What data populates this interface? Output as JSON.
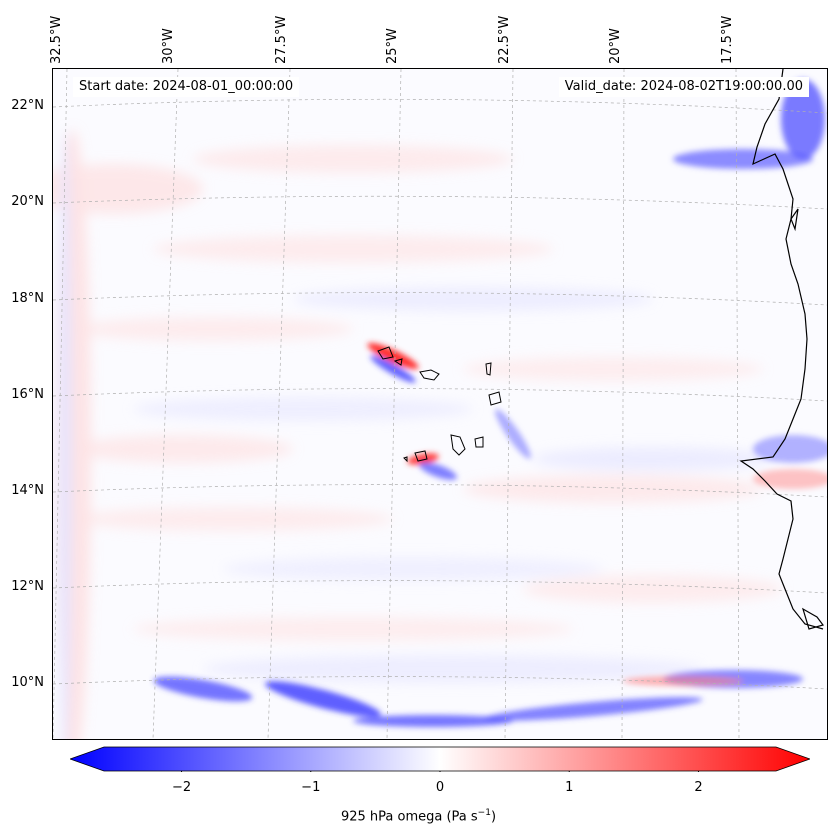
{
  "header": {
    "start_date": "Start date: 2024-08-01_00:00:00",
    "valid_date": "Valid_date: 2024-08-02T19:00:00.00"
  },
  "map": {
    "variable": "925 hPa omega",
    "lat_labels": [
      "22°N",
      "20°N",
      "18°N",
      "16°N",
      "14°N",
      "12°N",
      "10°N"
    ],
    "lon_labels": [
      "32.5°W",
      "30°W",
      "27.5°W",
      "25°W",
      "22.5°W",
      "20°W",
      "17.5°W"
    ],
    "colors": {
      "negative": "#0000ff",
      "zero": "#ffffff",
      "positive": "#ff0000",
      "coast": "#000000",
      "grid": "#b0b0b0"
    }
  },
  "colorbar": {
    "label_main": "925 hPa omega (Pa s",
    "label_exp": "−1",
    "label_end": ")",
    "ticks": [
      "−2",
      "−1",
      "0",
      "1",
      "2"
    ],
    "tick_values": [
      -2,
      -1,
      0,
      1,
      2
    ],
    "range": [
      -2.6,
      2.6
    ],
    "extend": "both"
  }
}
